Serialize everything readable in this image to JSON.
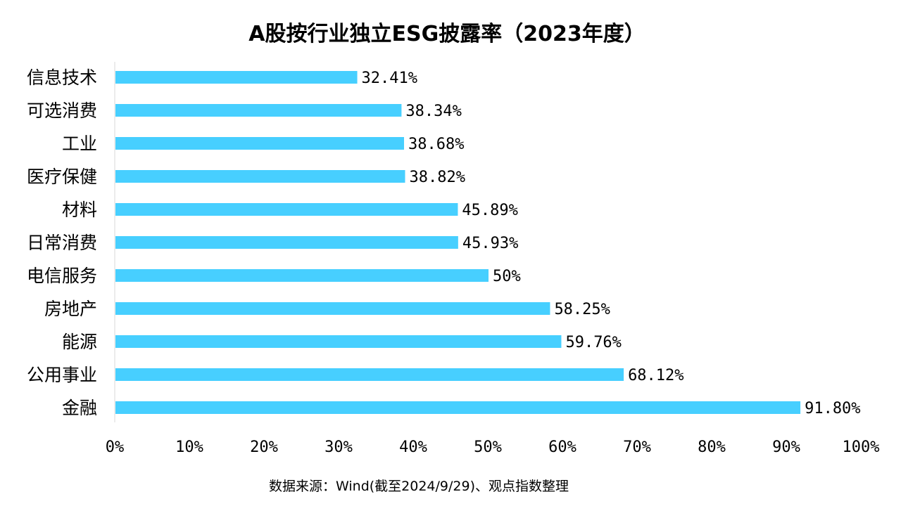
{
  "colors": {
    "bar": "#47CFFF",
    "axis": "#D9D9D9",
    "text": "#000000"
  },
  "source": "数据来源：Wind(截至2024/9/29)、观点指数整理",
  "chart_data": {
    "type": "bar",
    "orientation": "horizontal",
    "title": "A股按行业独立ESG披露率（2023年度）",
    "xlabel": "",
    "ylabel": "",
    "xlim": [
      0,
      100
    ],
    "grid": false,
    "categories": [
      "信息技术",
      "可选消费",
      "工业",
      "医疗保健",
      "材料",
      "日常消费",
      "电信服务",
      "房地产",
      "能源",
      "公用事业",
      "金融"
    ],
    "values": [
      32.41,
      38.34,
      38.68,
      38.82,
      45.89,
      45.93,
      50,
      58.25,
      59.76,
      68.12,
      91.8
    ],
    "data_labels": [
      "32.41%",
      "38.34%",
      "38.68%",
      "38.82%",
      "45.89%",
      "45.93%",
      "50%",
      "58.25%",
      "59.76%",
      "68.12%",
      "91.80%"
    ],
    "x_ticks": [
      "0%",
      "10%",
      "20%",
      "30%",
      "40%",
      "50%",
      "60%",
      "70%",
      "80%",
      "90%",
      "100%"
    ]
  }
}
